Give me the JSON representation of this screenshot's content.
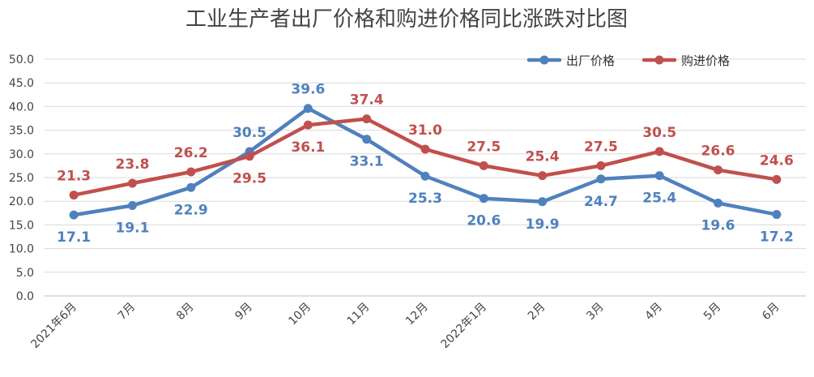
{
  "chart_data": {
    "type": "line",
    "title": "工业生产者出厂价格和购进价格同比涨跌对比图",
    "categories": [
      "2021年6月",
      "7月",
      "8月",
      "9月",
      "10月",
      "11月",
      "12月",
      "2022年1月",
      "2月",
      "3月",
      "4月",
      "5月",
      "6月"
    ],
    "y_ticks": [
      "0.0",
      "5.0",
      "10.0",
      "15.0",
      "20.0",
      "25.0",
      "30.0",
      "35.0",
      "40.0",
      "45.0",
      "50.0"
    ],
    "ylim": [
      0,
      50
    ],
    "grid": true,
    "legend_position": "top-right",
    "series": [
      {
        "name": "出厂价格",
        "color": "#4f81bd",
        "values": [
          17.1,
          19.1,
          22.9,
          30.5,
          39.6,
          33.1,
          25.3,
          20.6,
          19.9,
          24.7,
          25.4,
          19.6,
          17.2
        ],
        "labels": [
          "17.1",
          "19.1",
          "22.9",
          "30.5",
          "39.6",
          "33.1",
          "25.3",
          "20.6",
          "19.9",
          "24.7",
          "25.4",
          "19.6",
          "17.2"
        ]
      },
      {
        "name": "购进价格",
        "color": "#c0504d",
        "values": [
          21.3,
          23.8,
          26.2,
          29.5,
          36.1,
          37.4,
          31.0,
          27.5,
          25.4,
          27.5,
          30.5,
          26.6,
          24.6
        ],
        "labels": [
          "21.3",
          "23.8",
          "26.2",
          "29.5",
          "36.1",
          "37.4",
          "31.0",
          "27.5",
          "25.4",
          "27.5",
          "30.5",
          "26.6",
          "24.6"
        ]
      }
    ]
  }
}
